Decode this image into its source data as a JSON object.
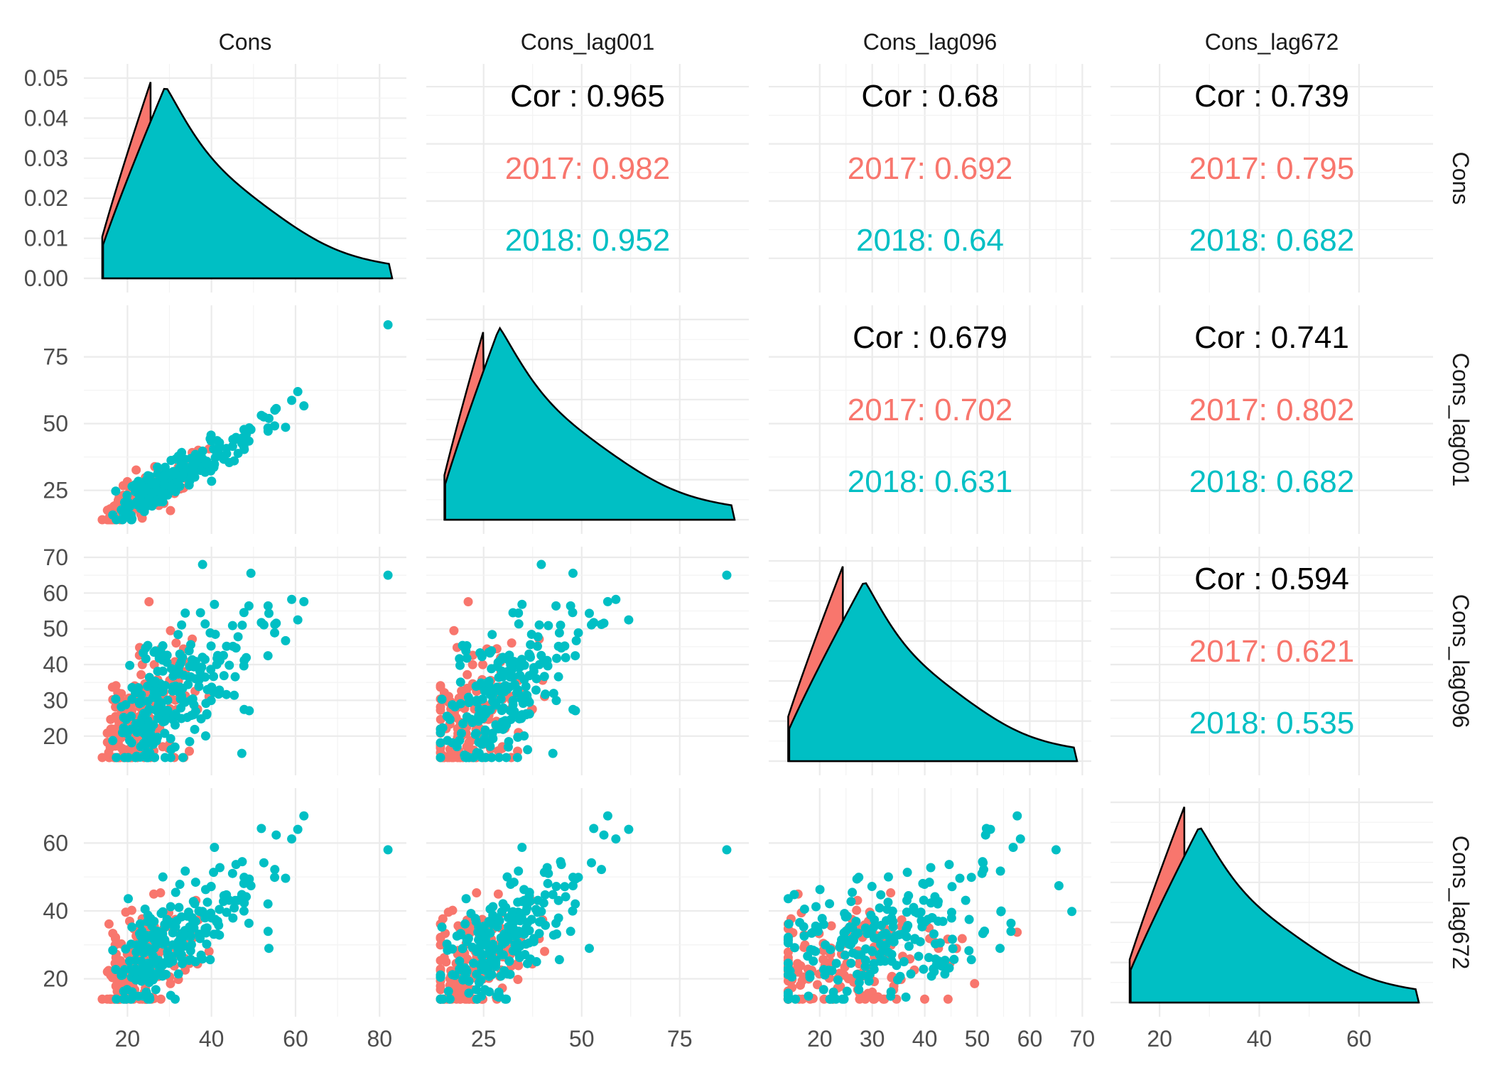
{
  "colors": {
    "g2017": "#F8766D",
    "g2018": "#00BFC4",
    "outline": "#000000",
    "text": "#000000"
  },
  "chart_data": {
    "type": "scatter",
    "subtype": "pairs-matrix",
    "variables": [
      "Cons",
      "Cons_lag001",
      "Cons_lag096",
      "Cons_lag672"
    ],
    "groups": [
      "2017",
      "2018"
    ],
    "grid": true,
    "legend": "none",
    "axes": {
      "Cons": {
        "range": [
          13,
          83
        ],
        "ticks": [
          20,
          40,
          60,
          80
        ]
      },
      "Cons_lag001": {
        "range": [
          14,
          89
        ],
        "ticks": [
          25,
          50,
          75
        ]
      },
      "Cons_lag096": {
        "range": [
          13,
          69
        ],
        "ticks": [
          20,
          30,
          40,
          50,
          60,
          70
        ]
      },
      "Cons_lag672": {
        "range": [
          13,
          72
        ],
        "ticks": [
          20,
          40,
          60
        ]
      }
    },
    "density_axis": {
      "range": [
        0,
        0.05
      ],
      "ticks": [
        "0.00",
        "0.01",
        "0.02",
        "0.03",
        "0.04",
        "0.05"
      ]
    },
    "density_peaks": [
      {
        "var": "Cons",
        "2017": [
          25.5,
          0.049
        ],
        "2018": [
          29,
          0.048
        ]
      },
      {
        "var": "Cons_lag001",
        "2017": [
          25.5,
          0.049
        ],
        "2018": [
          29,
          0.048
        ]
      },
      {
        "var": "Cons_lag096",
        "2017": [
          24.5,
          0.049
        ],
        "2018": [
          28.5,
          0.045
        ]
      },
      {
        "var": "Cons_lag672",
        "2017": [
          25,
          0.049
        ],
        "2018": [
          28,
          0.044
        ]
      }
    ],
    "correlations": [
      {
        "x": "Cons",
        "y": "Cons_lag001",
        "overall": "Cor : 0.965",
        "g2017": "2017: 0.982",
        "g2018": "2018: 0.952"
      },
      {
        "x": "Cons",
        "y": "Cons_lag096",
        "overall": "Cor : 0.68",
        "g2017": "2017: 0.692",
        "g2018": "2018: 0.64"
      },
      {
        "x": "Cons",
        "y": "Cons_lag672",
        "overall": "Cor : 0.739",
        "g2017": "2017: 0.795",
        "g2018": "2018: 0.682"
      },
      {
        "x": "Cons_lag001",
        "y": "Cons_lag096",
        "overall": "Cor : 0.679",
        "g2017": "2017: 0.702",
        "g2018": "2018: 0.631"
      },
      {
        "x": "Cons_lag001",
        "y": "Cons_lag672",
        "overall": "Cor : 0.741",
        "g2017": "2017: 0.802",
        "g2018": "2018: 0.682"
      },
      {
        "x": "Cons_lag096",
        "y": "Cons_lag672",
        "overall": "Cor : 0.594",
        "g2017": "2017: 0.621",
        "g2018": "2018: 0.535"
      }
    ]
  }
}
